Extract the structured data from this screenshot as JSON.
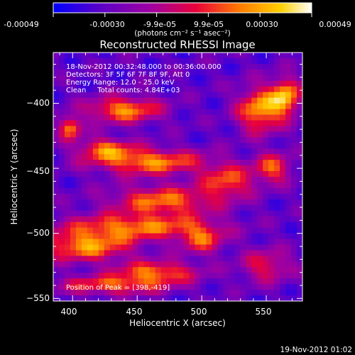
{
  "colorbar": {
    "tick_labels": [
      "-0.00049",
      "-0.00030",
      "-9.9e-05",
      "9.9e-05",
      "0.00030",
      "0.00049"
    ],
    "unit_label": "(photons cm⁻² s⁻¹ asec⁻²)",
    "range": [
      -0.00049,
      0.00049
    ],
    "colors": [
      "#0000ff",
      "#5a00c8",
      "#a000a0",
      "#e8003c",
      "#ff7a00",
      "#ffd000",
      "#ffffff"
    ]
  },
  "chart_data": {
    "type": "heatmap",
    "title": "Reconstructed RHESSI Image",
    "xlabel": "Heliocentric X (arcsec)",
    "ylabel": "Heliocentric Y (arcsec)",
    "xlim": [
      385,
      578
    ],
    "ylim": [
      -552,
      -361
    ],
    "x_ticks": [
      400,
      450,
      500,
      550
    ],
    "y_ticks": [
      -400,
      -450,
      -500,
      -550
    ],
    "x_tick_labels": [
      "400",
      "450",
      "500",
      "550"
    ],
    "y_tick_labels": [
      "−400",
      "−450",
      "−500",
      "−550"
    ],
    "annotations": [
      "18-Nov-2012 00:32:48.000 to 00:36:00.000",
      "Detectors: 3F 5F 6F 7F 8F 9F, Att 0",
      "Energy Range: 12.0 - 25.0 keV",
      "Clean     Total counts: 4.84E+03"
    ],
    "peak_label": "Position of Peak = [398,-419]",
    "peak": [
      398,
      -419
    ],
    "features": [
      {
        "x": 440,
        "y": -405,
        "amp": 0.55,
        "sx": 20,
        "sy": 7
      },
      {
        "x": 425,
        "y": -435,
        "amp": 0.45,
        "sx": 15,
        "sy": 6
      },
      {
        "x": 460,
        "y": -445,
        "amp": 0.55,
        "sx": 30,
        "sy": 7
      },
      {
        "x": 470,
        "y": -475,
        "amp": 0.5,
        "sx": 28,
        "sy": 8
      },
      {
        "x": 450,
        "y": -495,
        "amp": 0.5,
        "sx": 40,
        "sy": 7
      },
      {
        "x": 410,
        "y": -510,
        "amp": 0.55,
        "sx": 25,
        "sy": 8
      },
      {
        "x": 465,
        "y": -530,
        "amp": 0.5,
        "sx": 22,
        "sy": 6
      },
      {
        "x": 430,
        "y": -540,
        "amp": 0.45,
        "sx": 30,
        "sy": 5
      },
      {
        "x": 545,
        "y": -405,
        "amp": 0.6,
        "sx": 12,
        "sy": 12
      },
      {
        "x": 565,
        "y": -395,
        "amp": 0.6,
        "sx": 8,
        "sy": 10
      },
      {
        "x": 520,
        "y": -460,
        "amp": 0.45,
        "sx": 14,
        "sy": 9
      },
      {
        "x": 555,
        "y": -450,
        "amp": 0.45,
        "sx": 10,
        "sy": 8
      },
      {
        "x": 500,
        "y": -505,
        "amp": 0.4,
        "sx": 12,
        "sy": 8
      },
      {
        "x": 550,
        "y": -525,
        "amp": 0.35,
        "sx": 14,
        "sy": 9
      }
    ]
  },
  "timestamp": "19-Nov-2012 01:02"
}
